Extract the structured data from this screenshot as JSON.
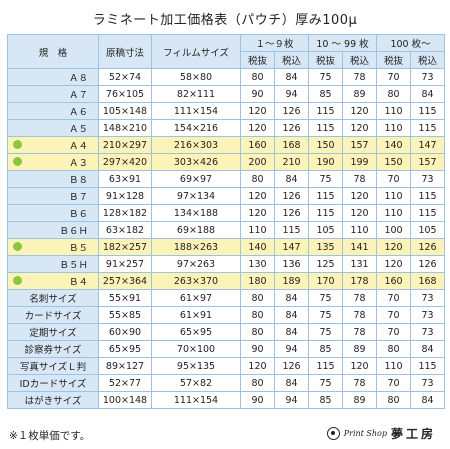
{
  "title": "ラミネート加工価格表（パウチ）厚み100μ",
  "headers": {
    "size": "規　格",
    "original": "原稿寸法",
    "film": "フィルムサイズ",
    "tier1": "１～９枚",
    "tier2": "10 ～ 99 枚",
    "tier3": "100 枚～",
    "ex_tax": "税抜",
    "in_tax": "税込"
  },
  "rows": [
    {
      "name": "Ａ８",
      "original": "52×74",
      "film": "58×80",
      "p1": "80",
      "p1t": "84",
      "p2": "75",
      "p2t": "78",
      "p3": "70",
      "p3t": "73"
    },
    {
      "name": "Ａ７",
      "original": "76×105",
      "film": "82×111",
      "p1": "90",
      "p1t": "94",
      "p2": "85",
      "p2t": "89",
      "p3": "80",
      "p3t": "84"
    },
    {
      "name": "Ａ６",
      "original": "105×148",
      "film": "111×154",
      "p1": "120",
      "p1t": "126",
      "p2": "115",
      "p2t": "120",
      "p3": "110",
      "p3t": "115"
    },
    {
      "name": "Ａ５",
      "original": "148×210",
      "film": "154×216",
      "p1": "120",
      "p1t": "126",
      "p2": "115",
      "p2t": "120",
      "p3": "110",
      "p3t": "115"
    },
    {
      "name": "Ａ４",
      "original": "210×297",
      "film": "216×303",
      "p1": "160",
      "p1t": "168",
      "p2": "150",
      "p2t": "157",
      "p3": "140",
      "p3t": "147"
    },
    {
      "name": "Ａ３",
      "original": "297×420",
      "film": "303×426",
      "p1": "200",
      "p1t": "210",
      "p2": "190",
      "p2t": "199",
      "p3": "150",
      "p3t": "157"
    },
    {
      "name": "Ｂ８",
      "original": "63×91",
      "film": "69×97",
      "p1": "80",
      "p1t": "84",
      "p2": "75",
      "p2t": "78",
      "p3": "70",
      "p3t": "73"
    },
    {
      "name": "Ｂ７",
      "original": "91×128",
      "film": "97×134",
      "p1": "120",
      "p1t": "126",
      "p2": "115",
      "p2t": "120",
      "p3": "110",
      "p3t": "115"
    },
    {
      "name": "Ｂ６",
      "original": "128×182",
      "film": "134×188",
      "p1": "120",
      "p1t": "126",
      "p2": "115",
      "p2t": "120",
      "p3": "110",
      "p3t": "115"
    },
    {
      "name": "Ｂ６Ｈ",
      "original": "63×182",
      "film": "69×188",
      "p1": "110",
      "p1t": "115",
      "p2": "105",
      "p2t": "110",
      "p3": "100",
      "p3t": "105"
    },
    {
      "name": "Ｂ５",
      "original": "182×257",
      "film": "188×263",
      "p1": "140",
      "p1t": "147",
      "p2": "135",
      "p2t": "141",
      "p3": "120",
      "p3t": "126"
    },
    {
      "name": "Ｂ５Ｈ",
      "original": "91×257",
      "film": "97×263",
      "p1": "130",
      "p1t": "136",
      "p2": "125",
      "p2t": "131",
      "p3": "120",
      "p3t": "126"
    },
    {
      "name": "Ｂ４",
      "original": "257×364",
      "film": "263×370",
      "p1": "180",
      "p1t": "189",
      "p2": "170",
      "p2t": "178",
      "p3": "160",
      "p3t": "168"
    },
    {
      "name": "名刺サイズ",
      "original": "55×91",
      "film": "61×97",
      "p1": "80",
      "p1t": "84",
      "p2": "75",
      "p2t": "78",
      "p3": "70",
      "p3t": "73"
    },
    {
      "name": "カードサイズ",
      "original": "55×85",
      "film": "61×91",
      "p1": "80",
      "p1t": "84",
      "p2": "75",
      "p2t": "78",
      "p3": "70",
      "p3t": "73"
    },
    {
      "name": "定期サイズ",
      "original": "60×90",
      "film": "65×95",
      "p1": "80",
      "p1t": "84",
      "p2": "75",
      "p2t": "78",
      "p3": "70",
      "p3t": "73"
    },
    {
      "name": "診察券サイズ",
      "original": "65×95",
      "film": "70×100",
      "p1": "90",
      "p1t": "94",
      "p2": "85",
      "p2t": "89",
      "p3": "80",
      "p3t": "84"
    },
    {
      "name": "写真サイズＬ判",
      "original": "89×127",
      "film": "95×135",
      "p1": "120",
      "p1t": "126",
      "p2": "115",
      "p2t": "120",
      "p3": "110",
      "p3t": "115"
    },
    {
      "name": "IDカードサイズ",
      "original": "52×77",
      "film": "57×82",
      "p1": "80",
      "p1t": "84",
      "p2": "75",
      "p2t": "78",
      "p3": "70",
      "p3t": "73"
    },
    {
      "name": "はがきサイズ",
      "original": "100×148",
      "film": "111×154",
      "p1": "90",
      "p1t": "94",
      "p2": "85",
      "p2t": "89",
      "p3": "80",
      "p3t": "84"
    }
  ],
  "footnote": "※１枚単価です。",
  "logo": {
    "script": "Print Shop",
    "name": "夢工房",
    "icon": "shop-logo-icon"
  },
  "colors": {
    "header_bg": "#d7e7f5",
    "highlight_bg": "#fbf3b7",
    "border": "#9fc3de",
    "dot": "#8cc63f"
  }
}
